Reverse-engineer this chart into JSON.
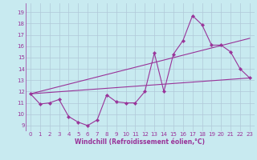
{
  "title": "",
  "xlabel": "Windchill (Refroidissement éolien,°C)",
  "background_color": "#c8eaf0",
  "grid_color": "#b0c8d8",
  "line_color": "#993399",
  "x_ticks": [
    0,
    1,
    2,
    3,
    4,
    5,
    6,
    7,
    8,
    9,
    10,
    11,
    12,
    13,
    14,
    15,
    16,
    17,
    18,
    19,
    20,
    21,
    22,
    23
  ],
  "y_ticks": [
    9,
    10,
    11,
    12,
    13,
    14,
    15,
    16,
    17,
    18,
    19
  ],
  "ylim": [
    8.5,
    19.8
  ],
  "xlim": [
    -0.5,
    23.5
  ],
  "line1": [
    11.8,
    10.9,
    11.0,
    11.3,
    9.8,
    9.3,
    9.0,
    9.5,
    11.7,
    11.1,
    11.0,
    11.0,
    12.0,
    15.4,
    12.0,
    15.3,
    16.5,
    18.7,
    17.9,
    16.1,
    16.1,
    15.5,
    14.0,
    13.2
  ],
  "line2_x": [
    0,
    23
  ],
  "line2_y": [
    11.8,
    13.2
  ],
  "line3_x": [
    0,
    23
  ],
  "line3_y": [
    11.8,
    16.7
  ],
  "tick_fontsize": 5,
  "xlabel_fontsize": 5.5
}
